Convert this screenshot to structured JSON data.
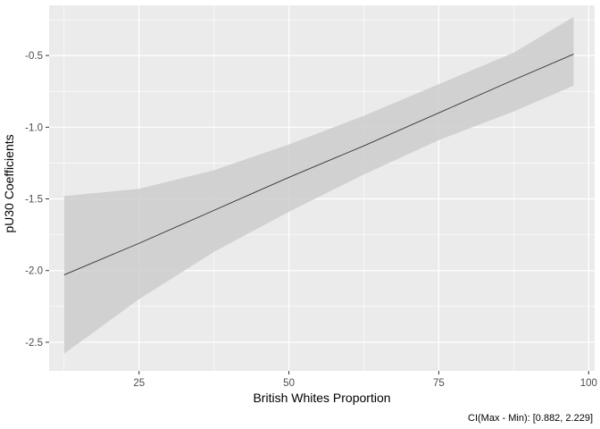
{
  "chart_data": {
    "type": "line",
    "title": "",
    "xlabel": "British Whites Proportion",
    "ylabel": "pU30 Coefficients",
    "caption": "CI(Max - Min): [0.882, 2.229]",
    "xlim": [
      10,
      101
    ],
    "ylim": [
      -2.7,
      -0.15
    ],
    "x_ticks": [
      25,
      50,
      75,
      100
    ],
    "x_tick_labels": [
      "25",
      "50",
      "75",
      "100"
    ],
    "y_ticks": [
      -2.5,
      -2.0,
      -1.5,
      -1.0,
      -0.5
    ],
    "y_tick_labels": [
      "-2.5",
      "-2.0",
      "-1.5",
      "-1.0",
      "-0.5"
    ],
    "grid": true,
    "legend": "none",
    "series": [
      {
        "x": [
          12.5,
          25,
          37.5,
          50,
          62.5,
          75,
          87.5,
          97.5
        ],
        "y": [
          -2.03,
          -1.81,
          -1.58,
          -1.35,
          -1.13,
          -0.9,
          -0.67,
          -0.49
        ],
        "ci_lower": [
          -2.58,
          -2.2,
          -1.87,
          -1.59,
          -1.33,
          -1.09,
          -0.89,
          -0.71
        ],
        "ci_upper": [
          -1.48,
          -1.43,
          -1.3,
          -1.12,
          -0.92,
          -0.7,
          -0.48,
          -0.23
        ]
      }
    ],
    "colors": {
      "panel": "#EBEBEB",
      "grid_major": "#FFFFFF",
      "ribbon": "#CCCCCC",
      "line": "#333333"
    }
  }
}
